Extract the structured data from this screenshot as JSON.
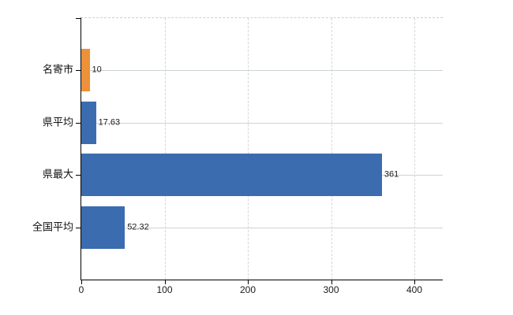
{
  "chart": {
    "background": "#ffffff",
    "axis_color": "#000000",
    "text_color": "#1a1a1a",
    "h_gridline_color": "#ccd6cc",
    "v_gridline_color": "#d5d5dc",
    "top_border_color": "#cfcfcf"
  },
  "chart_data": {
    "type": "bar",
    "orientation": "horizontal",
    "title": "",
    "xlabel": "",
    "ylabel": "",
    "categories": [
      "名寄市",
      "県平均",
      "県最大",
      "全国平均"
    ],
    "values": [
      10,
      17.63,
      361,
      52.32
    ],
    "value_labels": [
      "10",
      "17.63",
      "361",
      "52.32"
    ],
    "bar_colors": [
      "#EC9139",
      "#3C6CB0",
      "#3C6CB0",
      "#3C6CB0"
    ],
    "x_ticks": [
      0,
      100,
      200,
      300,
      400
    ],
    "xlim": [
      0,
      434
    ],
    "grid": true,
    "legend": false
  }
}
